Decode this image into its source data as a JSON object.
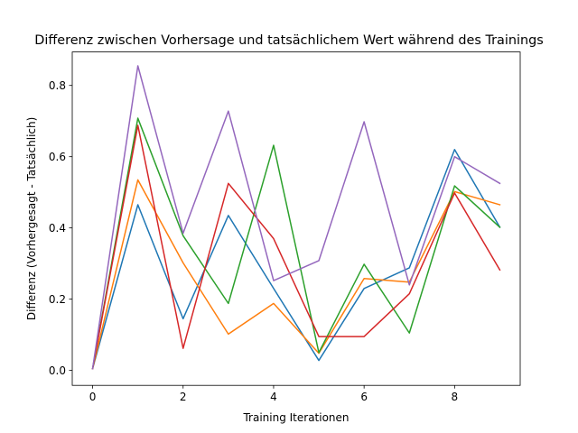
{
  "chart_data": {
    "type": "line",
    "title": "Differenz zwischen Vorhersage und tatsächlichem Wert während des Trainings",
    "xlabel": "Training Iterationen",
    "ylabel": "Differenz (Vorhergesagt - Tatsächlich)",
    "xlim": [
      -0.45,
      9.45
    ],
    "ylim": [
      -0.042,
      0.894
    ],
    "xticks": [
      0,
      2,
      4,
      6,
      8
    ],
    "yticks": [
      0.0,
      0.2,
      0.4,
      0.6,
      0.8
    ],
    "xtick_labels": [
      "0",
      "2",
      "4",
      "6",
      "8"
    ],
    "ytick_labels": [
      "0.0",
      "0.2",
      "0.4",
      "0.6",
      "0.8"
    ],
    "grid": false,
    "legend": "none",
    "x": [
      0,
      1,
      2,
      3,
      4,
      5,
      6,
      7,
      8,
      9
    ],
    "series": [
      {
        "color": "#1f77b4",
        "values": [
          0.005,
          0.465,
          0.145,
          0.435,
          0.23,
          0.028,
          0.23,
          0.288,
          0.62,
          0.402
        ]
      },
      {
        "color": "#ff7f0e",
        "values": [
          0.005,
          0.535,
          0.302,
          0.102,
          0.188,
          0.048,
          0.258,
          0.248,
          0.502,
          0.465
        ]
      },
      {
        "color": "#2ca02c",
        "values": [
          0.005,
          0.708,
          0.378,
          0.188,
          0.632,
          0.05,
          0.298,
          0.105,
          0.518,
          0.402
        ]
      },
      {
        "color": "#d62728",
        "values": [
          0.005,
          0.688,
          0.062,
          0.525,
          0.37,
          0.095,
          0.095,
          0.215,
          0.498,
          0.282
        ]
      },
      {
        "color": "#9467bd",
        "values": [
          0.005,
          0.855,
          0.385,
          0.728,
          0.252,
          0.308,
          0.698,
          0.24,
          0.6,
          0.525
        ]
      }
    ]
  }
}
